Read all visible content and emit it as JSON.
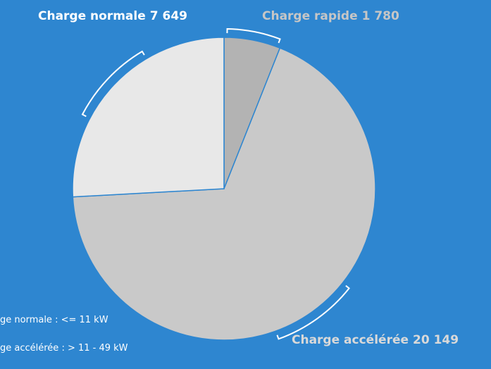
{
  "chart_data": {
    "type": "pie",
    "categories": [
      "Charge rapide",
      "Charge accélérée",
      "Charge normale"
    ],
    "values": [
      1780,
      20149,
      7649
    ],
    "value_labels": [
      "1 780",
      "20 149",
      "7 649"
    ],
    "colors": [
      "#b3b3b3",
      "#c9c9c9",
      "#e8e8e8"
    ],
    "label_colors": [
      "#c6c6c6",
      "#d9d9d9",
      "#ffffff"
    ],
    "legend": [
      "ge normale : <= 11 kW",
      "ge accélérée : > 11 - 49 kW"
    ]
  }
}
